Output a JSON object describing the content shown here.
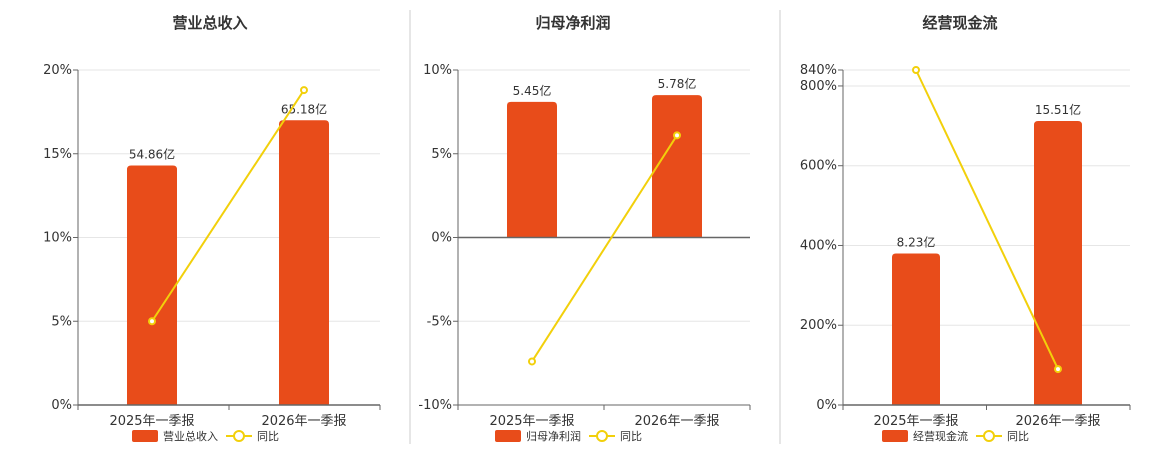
{
  "colors": {
    "bar": "#e84c1a",
    "line": "#f2d00b",
    "grid": "#e6e6e6",
    "axis": "#666666",
    "divider": "#cccccc"
  },
  "chart_data": [
    {
      "type": "bar",
      "title": "营业总收入",
      "categories": [
        "2025年一季报",
        "2026年一季报"
      ],
      "bar_series": {
        "name": "营业总收入",
        "labels": [
          "54.86亿",
          "65.18亿"
        ]
      },
      "line_series": {
        "name": "同比",
        "values": [
          5.0,
          18.8
        ]
      },
      "ylim": [
        0,
        20
      ],
      "yticks": [
        {
          "value": 0,
          "label": "0%"
        },
        {
          "value": 5,
          "label": "5%"
        },
        {
          "value": 10,
          "label": "10%"
        },
        {
          "value": 15,
          "label": "15%"
        },
        {
          "value": 20,
          "label": "20%"
        }
      ],
      "bar_heights_in_axis_units": [
        14.3,
        17.0
      ],
      "grid": true,
      "legend": "bottom"
    },
    {
      "type": "bar",
      "title": "归母净利润",
      "categories": [
        "2025年一季报",
        "2026年一季报"
      ],
      "bar_series": {
        "name": "归母净利润",
        "labels": [
          "5.45亿",
          "5.78亿"
        ]
      },
      "line_series": {
        "name": "同比",
        "values": [
          -7.4,
          6.1
        ]
      },
      "ylim": [
        -10,
        10
      ],
      "yticks": [
        {
          "value": -10,
          "label": "-10%"
        },
        {
          "value": -5,
          "label": "-5%"
        },
        {
          "value": 0,
          "label": "0%"
        },
        {
          "value": 5,
          "label": "5%"
        },
        {
          "value": 10,
          "label": "10%"
        }
      ],
      "bar_heights_in_axis_units": [
        8.1,
        8.5
      ],
      "grid": true,
      "legend": "bottom"
    },
    {
      "type": "bar",
      "title": "经营现金流",
      "categories": [
        "2025年一季报",
        "2026年一季报"
      ],
      "bar_series": {
        "name": "经营现金流",
        "labels": [
          "8.23亿",
          "15.51亿"
        ]
      },
      "line_series": {
        "name": "同比",
        "values": [
          840,
          90
        ]
      },
      "ylim": [
        0,
        840
      ],
      "yticks": [
        {
          "value": 0,
          "label": "0%"
        },
        {
          "value": 200,
          "label": "200%"
        },
        {
          "value": 400,
          "label": "400%"
        },
        {
          "value": 600,
          "label": "600%"
        },
        {
          "value": 800,
          "label": "800%"
        },
        {
          "value": 840,
          "label": "840%"
        }
      ],
      "bar_heights_in_axis_units": [
        380,
        712
      ],
      "grid": true,
      "legend": "bottom"
    }
  ]
}
